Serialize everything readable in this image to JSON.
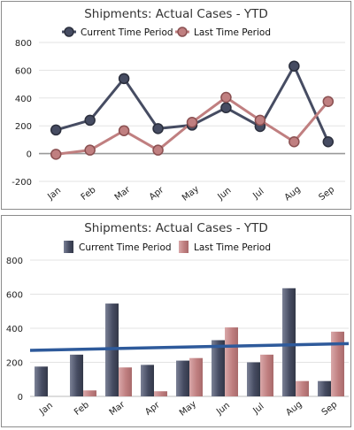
{
  "colors": {
    "current": "#464c62",
    "last": "#c07f80",
    "trend": "#2e5a9b",
    "grid": "#e3e3e3",
    "zero_line": "#999999"
  },
  "chart_data": [
    {
      "type": "line",
      "title": "Shipments: Actual Cases - YTD",
      "categories": [
        "Jan",
        "Feb",
        "Mar",
        "Apr",
        "May",
        "Jun",
        "Jul",
        "Aug",
        "Sep"
      ],
      "series": [
        {
          "name": "Current Time Period",
          "values": [
            170,
            240,
            540,
            180,
            205,
            330,
            195,
            630,
            85
          ]
        },
        {
          "name": "Last Time Period",
          "values": [
            -5,
            25,
            165,
            25,
            225,
            405,
            240,
            85,
            375
          ]
        }
      ],
      "ylim": [
        -200,
        800
      ],
      "yticks": [
        "-200",
        "0",
        "200",
        "400",
        "600",
        "800"
      ],
      "grid": true,
      "legend": "top-center"
    },
    {
      "type": "bar",
      "title": "Shipments: Actual Cases - YTD",
      "categories": [
        "Jan",
        "Feb",
        "Mar",
        "Apr",
        "May",
        "Jun",
        "Jul",
        "Aug",
        "Sep"
      ],
      "series": [
        {
          "name": "Current Time Period",
          "values": [
            175,
            245,
            545,
            185,
            210,
            330,
            200,
            635,
            90
          ]
        },
        {
          "name": "Last Time Period",
          "values": [
            0,
            35,
            170,
            30,
            225,
            405,
            245,
            90,
            380
          ]
        }
      ],
      "trendline": {
        "start": 270,
        "end": 310
      },
      "ylim": [
        0,
        800
      ],
      "yticks": [
        "0",
        "200",
        "400",
        "600",
        "800"
      ],
      "grid": true,
      "legend": "top-center"
    }
  ]
}
